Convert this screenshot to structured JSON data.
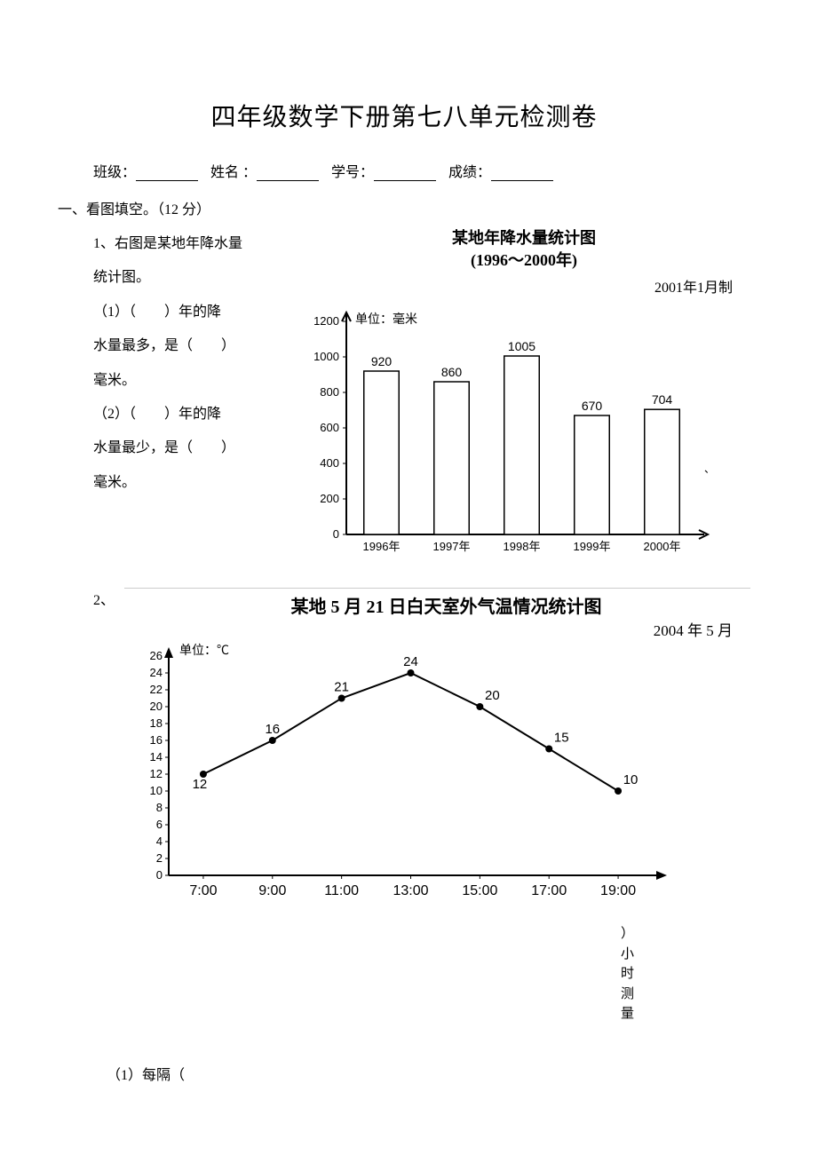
{
  "doc_title": "四年级数学下册第七八单元检测卷",
  "info": {
    "class_label": "班级：",
    "name_label": "姓名 ：",
    "id_label": "学号：",
    "score_label": "成绩："
  },
  "section1": {
    "heading": "一、看图填空。（12 分）",
    "q1": {
      "intro1": "1、右图是某地年降水量",
      "intro2": "统计图。",
      "sub1a": "（1）（　　）年的降",
      "sub1b": "水量最多，是（　　）",
      "sub1c": "毫米。",
      "sub2a": "（2）（　　）年的降",
      "sub2b": "水量最少，是（　　）",
      "sub2c": "毫米。"
    },
    "q2_label": "2、",
    "bottom_vert": "）小时测量",
    "bottom_q": "（1）每隔（"
  },
  "bar_chart": {
    "title_l1": "某地年降水量统计图",
    "title_l2": "(1996～2000年)",
    "made": "2001年1月制",
    "unit": "单位：毫米",
    "y_ticks": [
      0,
      200,
      400,
      600,
      800,
      1000,
      1200
    ],
    "ylim": [
      0,
      1200
    ],
    "categories": [
      "1996年",
      "1997年",
      "1998年",
      "1999年",
      "2000年"
    ],
    "values": [
      920,
      860,
      1005,
      670,
      704
    ],
    "bar_fill": "#ffffff",
    "bar_stroke": "#000000",
    "grid_color": "#ffffff",
    "bar_width_ratio": 0.5
  },
  "line_chart": {
    "title": "某地 5 月 21 日白天室外气温情况统计图",
    "made": "2004 年 5 月",
    "unit": "单位：℃",
    "y_ticks": [
      0,
      2,
      4,
      6,
      8,
      10,
      12,
      14,
      16,
      18,
      20,
      22,
      24,
      26
    ],
    "ylim": [
      0,
      26
    ],
    "x_labels": [
      "7:00",
      "9:00",
      "11:00",
      "13:00",
      "15:00",
      "17:00",
      "19:00"
    ],
    "points": [
      {
        "x": "7:00",
        "y": 12,
        "label": "12"
      },
      {
        "x": "9:00",
        "y": 16,
        "label": "16"
      },
      {
        "x": "11:00",
        "y": 21,
        "label": "21"
      },
      {
        "x": "13:00",
        "y": 24,
        "label": "24"
      },
      {
        "x": "15:00",
        "y": 20,
        "label": "20"
      },
      {
        "x": "17:00",
        "y": 15,
        "label": "15"
      },
      {
        "x": "19:00",
        "y": 10,
        "label": "10"
      }
    ],
    "line_color": "#000000",
    "marker_color": "#000000"
  }
}
